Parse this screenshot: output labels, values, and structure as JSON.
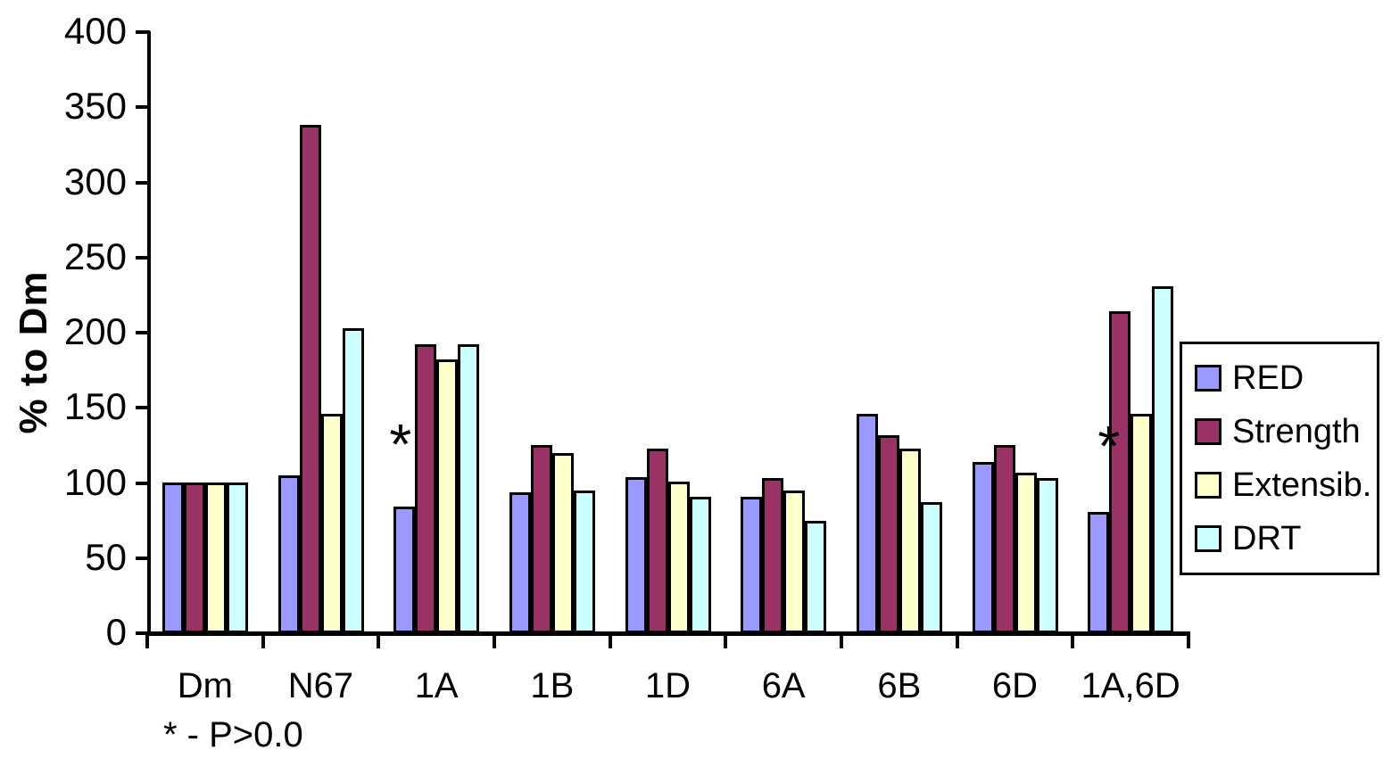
{
  "chart_data": {
    "type": "bar",
    "title": "",
    "ylabel": "% to Dm",
    "xlabel": "",
    "ylim": [
      0,
      400
    ],
    "ytick_step": 50,
    "grid": false,
    "legend_position": "right",
    "categories": [
      "Dm",
      "N67",
      "1A",
      "1B",
      "1D",
      "6A",
      "6B",
      "6D",
      "1A,6D"
    ],
    "series": [
      {
        "name": "RED",
        "color": "#9999FF",
        "values": [
          100,
          105,
          84,
          94,
          104,
          91,
          146,
          114,
          81
        ]
      },
      {
        "name": "Strength",
        "color": "#993366",
        "values": [
          100,
          338,
          192,
          125,
          123,
          103,
          132,
          125,
          214
        ]
      },
      {
        "name": "Extensib.",
        "color": "#FFFFCC",
        "values": [
          100,
          146,
          182,
          120,
          101,
          95,
          123,
          107,
          146
        ]
      },
      {
        "name": "DRT",
        "color": "#CCFFFF",
        "values": [
          100,
          203,
          192,
          95,
          91,
          75,
          87,
          103,
          231
        ]
      }
    ],
    "annotations": [
      {
        "text": "*",
        "category": "1A",
        "value": 125,
        "dx": 12
      },
      {
        "text": "*",
        "category": "1A,6D",
        "value": 124,
        "dx": 28
      }
    ],
    "footnote": "* - P>0.0"
  }
}
